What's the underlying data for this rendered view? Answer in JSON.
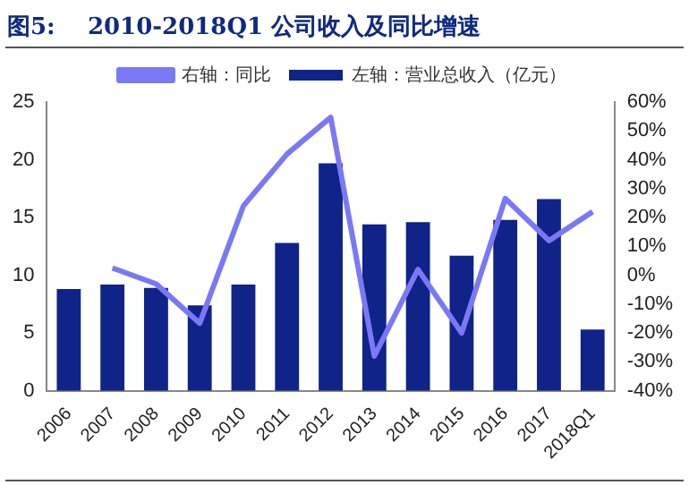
{
  "chart_data": {
    "type": "bar",
    "title": "图5:    2010-2018Q1 公司收入及同比增速",
    "categories": [
      "2006",
      "2007",
      "2008",
      "2009",
      "2010",
      "2011",
      "2012",
      "2013",
      "2014",
      "2015",
      "2016",
      "2017",
      "2018Q1"
    ],
    "series": [
      {
        "name": "左轴：营业总收入（亿元）",
        "color": "#0f2388",
        "values": [
          8.8,
          9.2,
          8.9,
          7.4,
          9.2,
          12.8,
          19.7,
          14.4,
          14.6,
          11.7,
          14.8,
          16.6,
          5.3
        ]
      },
      {
        "name": "右轴：同比",
        "type": "line",
        "axis": "y2",
        "color": "#7b78f5",
        "values": [
          null,
          2.5,
          -3,
          -16.6,
          24,
          42,
          54.7,
          -28,
          2,
          -20,
          26.6,
          12,
          22
        ]
      }
    ],
    "ylim": [
      0,
      25
    ],
    "yticks": [
      0,
      5,
      10,
      15,
      20,
      25
    ],
    "y2lim": [
      -40,
      60
    ],
    "y2ticks": [
      {
        "value": -40,
        "label": "-40%"
      },
      {
        "value": -30,
        "label": "-30%"
      },
      {
        "value": -20,
        "label": "-20%"
      },
      {
        "value": -10,
        "label": "-10%"
      },
      {
        "value": 0,
        "label": "0%"
      },
      {
        "value": 10,
        "label": "10%"
      },
      {
        "value": 20,
        "label": "20%"
      },
      {
        "value": 30,
        "label": "30%"
      },
      {
        "value": 40,
        "label": "40%"
      },
      {
        "value": 50,
        "label": "50%"
      },
      {
        "value": 60,
        "label": "60%"
      }
    ],
    "grid": false,
    "legend": "top",
    "marker": "none"
  }
}
